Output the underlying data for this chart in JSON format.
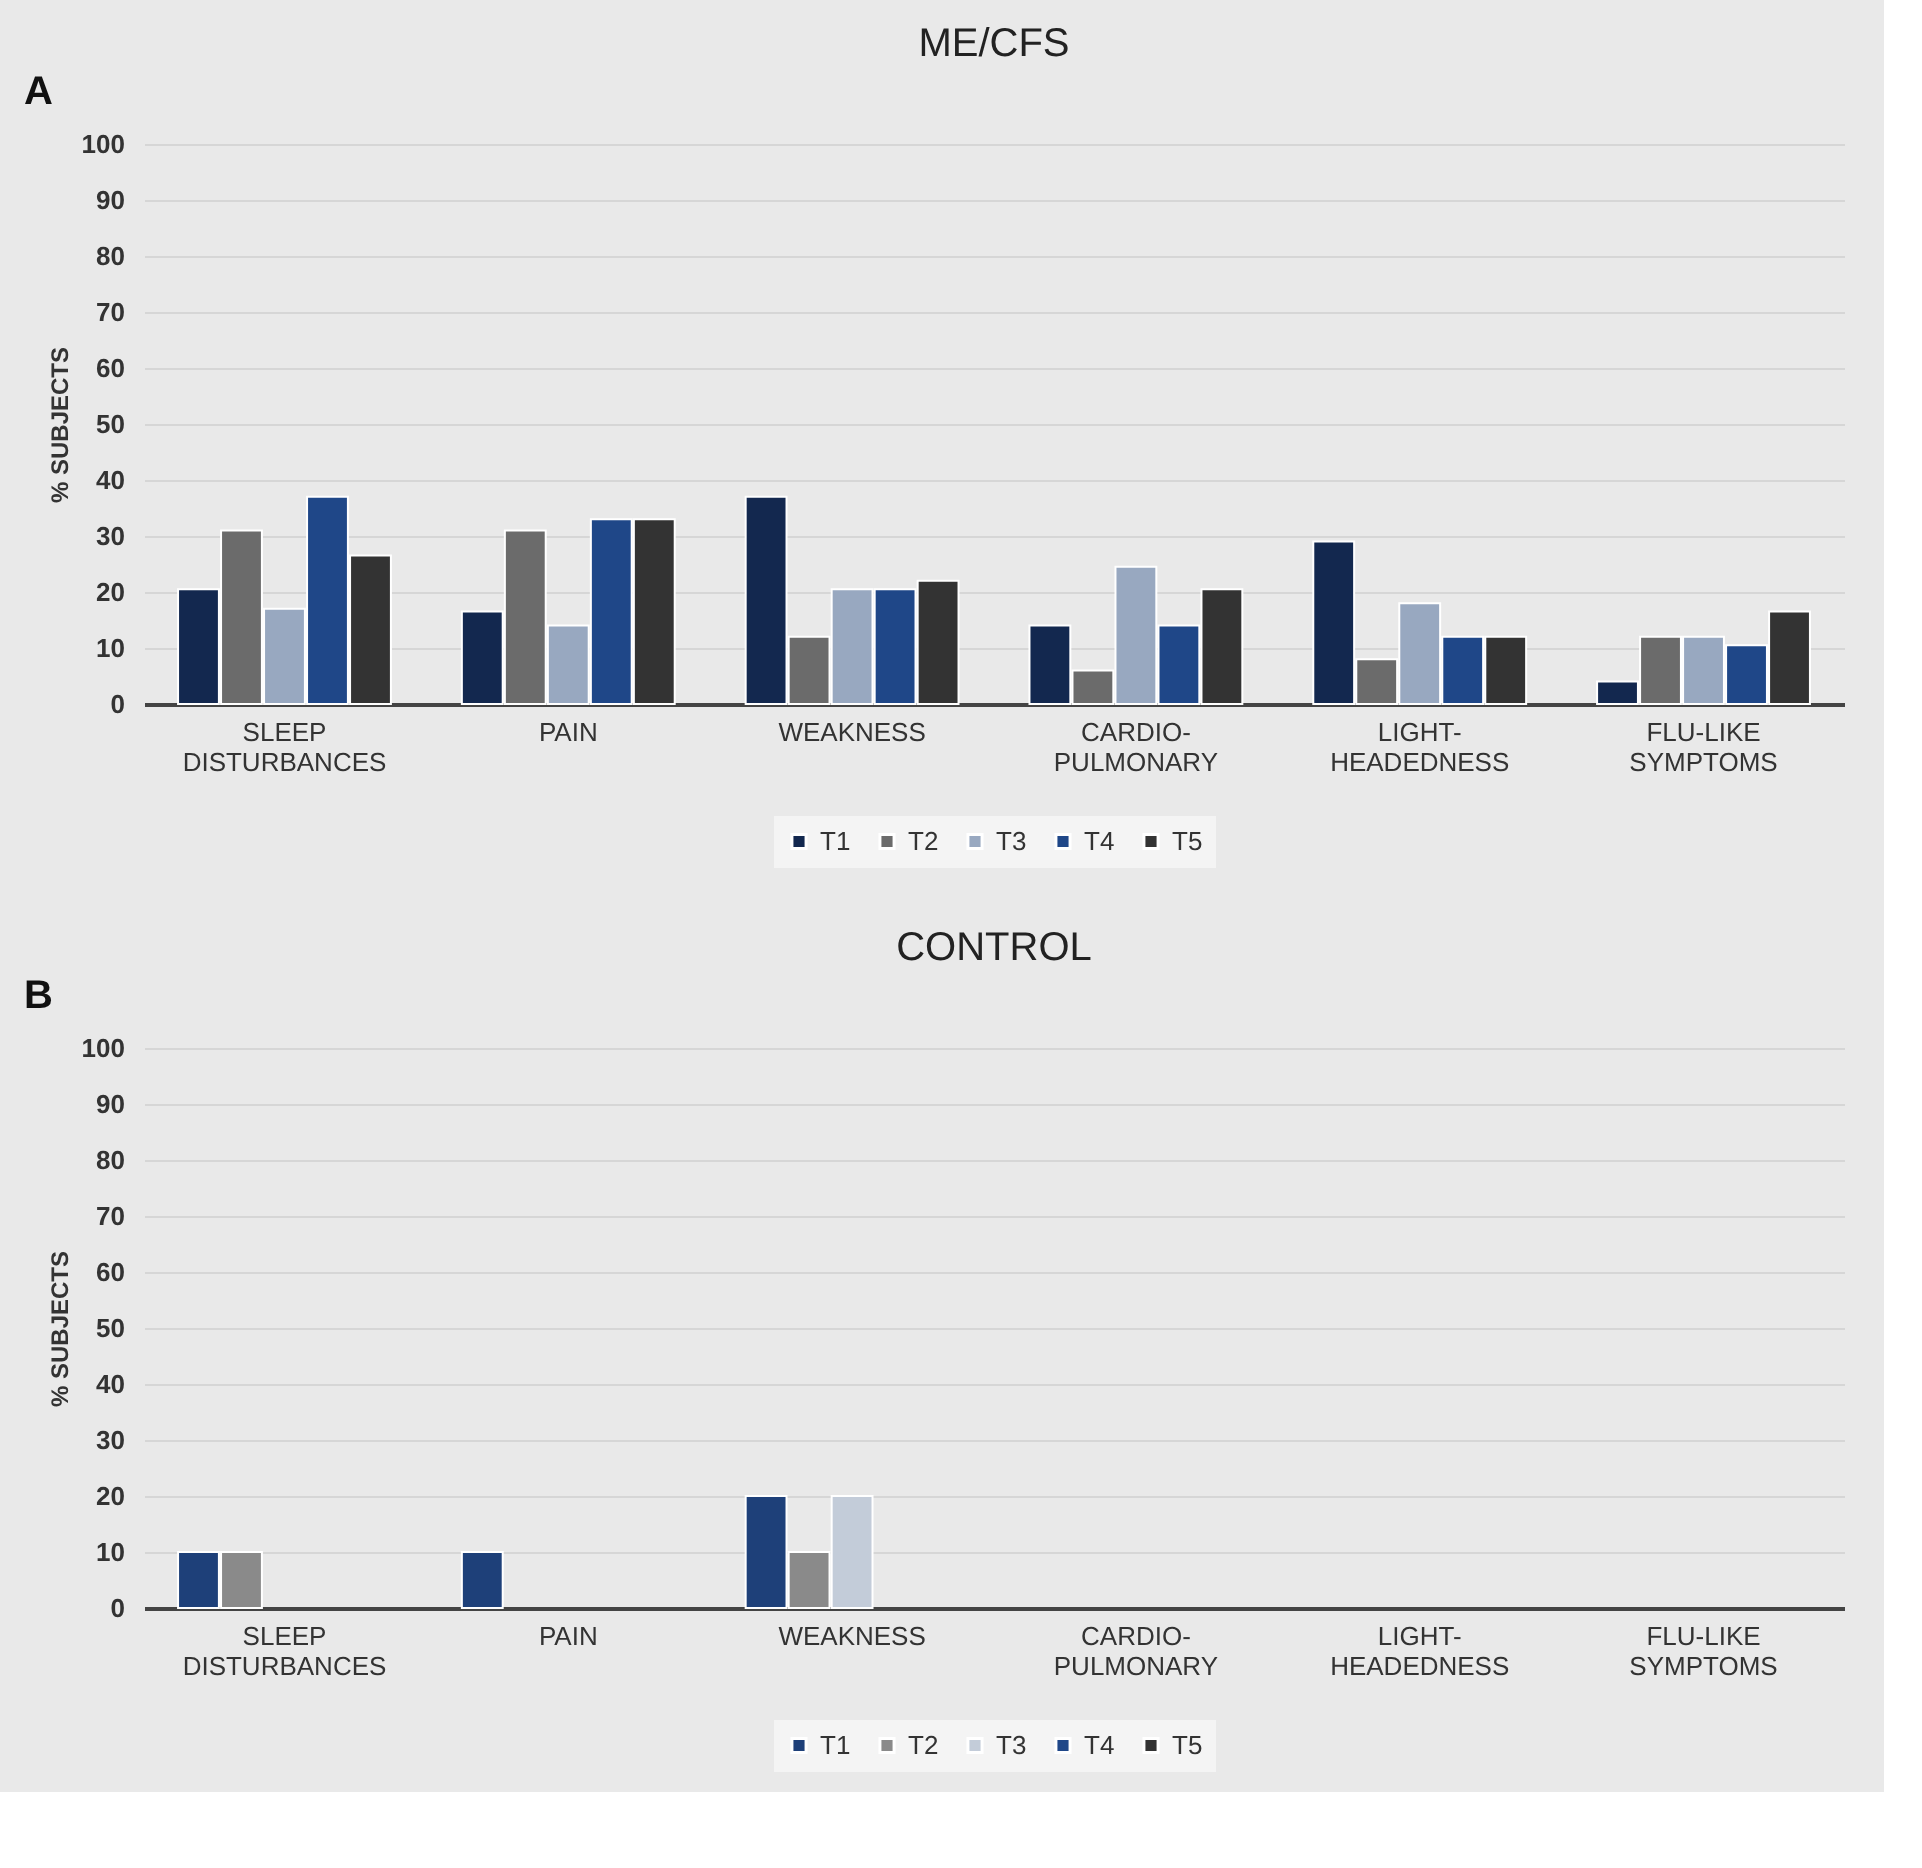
{
  "chart_data": [
    {
      "type": "bar",
      "title": "ME/CFS",
      "annotations": [
        "A"
      ],
      "ylabel": "% SUBJECTS",
      "categories": [
        "SLEEP DISTURBANCES",
        "PAIN",
        "WEAKNESS",
        "CARDIO-PULMONARY",
        "LIGHT-HEADEDNESS",
        "FLU-LIKE SYMPTOMS"
      ],
      "ylim": [
        0,
        100
      ],
      "yticks": [
        0,
        10,
        20,
        30,
        40,
        50,
        60,
        70,
        80,
        90,
        100
      ],
      "grid": "y",
      "legend": "bottom",
      "series": [
        {
          "name": "T1",
          "color": "#13284f",
          "values": [
            20.5,
            16.5,
            37,
            14,
            29,
            4
          ]
        },
        {
          "name": "T2",
          "color": "#6b6b6b",
          "values": [
            31,
            31,
            12,
            6,
            8,
            12
          ]
        },
        {
          "name": "T3",
          "color": "#98a8c0",
          "values": [
            17,
            14,
            20.5,
            24.5,
            18,
            12
          ]
        },
        {
          "name": "T4",
          "color": "#1f4788",
          "values": [
            37,
            33,
            20.5,
            14,
            12,
            10.5
          ]
        },
        {
          "name": "T5",
          "color": "#333333",
          "values": [
            26.5,
            33,
            22,
            20.5,
            12,
            16.5
          ]
        }
      ]
    },
    {
      "type": "bar",
      "title": "CONTROL",
      "annotations": [
        "B"
      ],
      "ylabel": "% SUBJECTS",
      "categories": [
        "SLEEP DISTURBANCES",
        "PAIN",
        "WEAKNESS",
        "CARDIO-PULMONARY",
        "LIGHT-HEADEDNESS",
        "FLU-LIKE SYMPTOMS"
      ],
      "ylim": [
        0,
        100
      ],
      "yticks": [
        0,
        10,
        20,
        30,
        40,
        50,
        60,
        70,
        80,
        90,
        100
      ],
      "grid": "y",
      "legend": "bottom",
      "series": [
        {
          "name": "T1",
          "color": "#1e4079",
          "values": [
            10,
            10,
            20,
            0,
            0,
            0
          ]
        },
        {
          "name": "T2",
          "color": "#8a8a8a",
          "values": [
            10,
            0,
            10,
            0,
            0,
            0
          ]
        },
        {
          "name": "T3",
          "color": "#c3ccd9",
          "values": [
            0,
            0,
            20,
            0,
            0,
            0
          ]
        },
        {
          "name": "T4",
          "color": "#1f4788",
          "values": [
            0,
            0,
            0,
            0,
            0,
            0
          ]
        },
        {
          "name": "T5",
          "color": "#333333",
          "values": [
            0,
            0,
            0,
            0,
            0,
            0
          ]
        }
      ]
    }
  ]
}
